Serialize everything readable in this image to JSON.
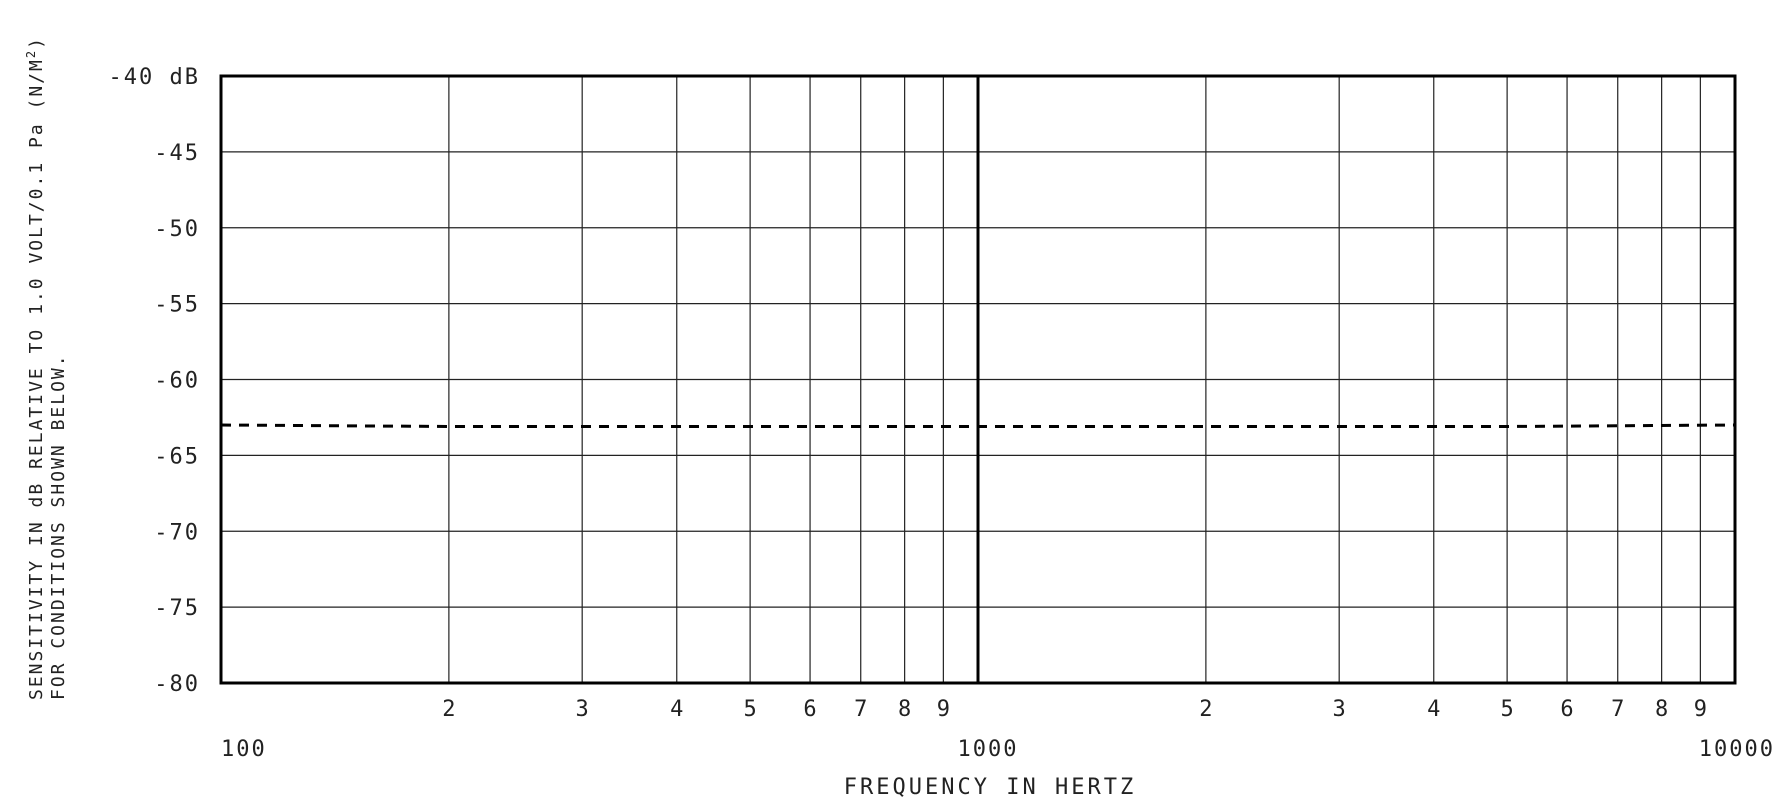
{
  "chart_data": {
    "type": "line",
    "x_scale": "log",
    "x_range": [
      100,
      10000
    ],
    "y_range": [
      -80,
      -40
    ],
    "y_ticks": [
      -40,
      -45,
      -50,
      -55,
      -60,
      -65,
      -70,
      -75,
      -80
    ],
    "y_tick_labels": [
      "-40 dB",
      "-45",
      "-50",
      "-55",
      "-60",
      "-65",
      "-70",
      "-75",
      "-80"
    ],
    "x_major_ticks": [
      100,
      1000,
      10000
    ],
    "x_major_labels": [
      "100",
      "1000",
      "10000"
    ],
    "x_minor_labels": [
      "2",
      "3",
      "4",
      "5",
      "6",
      "7",
      "8",
      "9"
    ],
    "xlabel": "FREQUENCY IN HERTZ",
    "ylabel_line1": "SENSITIVITY IN dB RELATIVE TO 1.0 VOLT/0.1 Pa (N/M",
    "ylabel_superscript": "2",
    "ylabel_line1_end": ")",
    "ylabel_line2": "FOR CONDITIONS SHOWN BELOW.",
    "grid": true,
    "series": [
      {
        "line_style": "dashed",
        "color": "#000000",
        "x": [
          100,
          200,
          500,
          1000,
          2000,
          5000,
          10000
        ],
        "y": [
          -63.0,
          -63.1,
          -63.1,
          -63.1,
          -63.1,
          -63.1,
          -63.0
        ]
      }
    ]
  }
}
